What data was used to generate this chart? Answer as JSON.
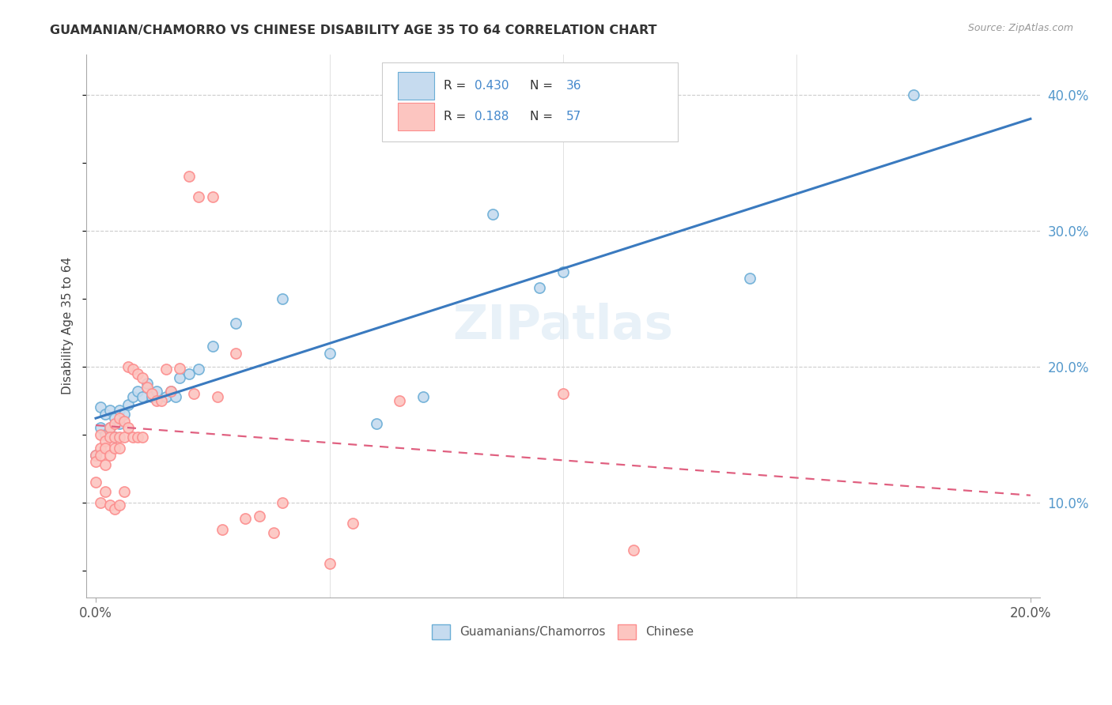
{
  "title": "GUAMANIAN/CHAMORRO VS CHINESE DISABILITY AGE 35 TO 64 CORRELATION CHART",
  "source": "Source: ZipAtlas.com",
  "ylabel": "Disability Age 35 to 64",
  "legend_label1": "Guamanians/Chamorros",
  "legend_label2": "Chinese",
  "r1": "0.430",
  "n1": "36",
  "r2": "0.188",
  "n2": "57",
  "blue_marker_face": "#c6dbef",
  "blue_marker_edge": "#6baed6",
  "pink_marker_face": "#fcc5c0",
  "pink_marker_edge": "#fc8d8d",
  "line_blue": "#3a7abf",
  "line_pink": "#e06080",
  "watermark": "ZIPatlas",
  "xlim": [
    0.0,
    0.2
  ],
  "ylim": [
    0.03,
    0.43
  ],
  "yticks": [
    0.1,
    0.2,
    0.3,
    0.4
  ],
  "ytick_labels": [
    "10.0%",
    "20.0%",
    "30.0%",
    "40.0%"
  ],
  "guam_x": [
    0.0,
    0.001,
    0.001,
    0.002,
    0.002,
    0.003,
    0.003,
    0.004,
    0.004,
    0.005,
    0.005,
    0.006,
    0.007,
    0.008,
    0.009,
    0.01,
    0.011,
    0.012,
    0.013,
    0.015,
    0.016,
    0.017,
    0.018,
    0.02,
    0.022,
    0.025,
    0.03,
    0.04,
    0.05,
    0.06,
    0.07,
    0.085,
    0.095,
    0.1,
    0.14,
    0.175
  ],
  "guam_y": [
    0.135,
    0.155,
    0.17,
    0.15,
    0.165,
    0.155,
    0.168,
    0.148,
    0.162,
    0.158,
    0.168,
    0.165,
    0.172,
    0.178,
    0.182,
    0.178,
    0.188,
    0.178,
    0.182,
    0.178,
    0.182,
    0.178,
    0.192,
    0.195,
    0.198,
    0.215,
    0.232,
    0.25,
    0.21,
    0.158,
    0.178,
    0.312,
    0.258,
    0.27,
    0.265,
    0.4
  ],
  "chinese_x": [
    0.0,
    0.0,
    0.0,
    0.001,
    0.001,
    0.001,
    0.001,
    0.002,
    0.002,
    0.002,
    0.002,
    0.003,
    0.003,
    0.003,
    0.003,
    0.004,
    0.004,
    0.004,
    0.004,
    0.005,
    0.005,
    0.005,
    0.005,
    0.006,
    0.006,
    0.006,
    0.007,
    0.007,
    0.008,
    0.008,
    0.009,
    0.009,
    0.01,
    0.01,
    0.011,
    0.012,
    0.013,
    0.014,
    0.015,
    0.016,
    0.018,
    0.02,
    0.021,
    0.022,
    0.025,
    0.026,
    0.027,
    0.03,
    0.032,
    0.035,
    0.038,
    0.04,
    0.05,
    0.055,
    0.065,
    0.1,
    0.115
  ],
  "chinese_y": [
    0.135,
    0.13,
    0.115,
    0.15,
    0.14,
    0.135,
    0.1,
    0.145,
    0.14,
    0.128,
    0.108,
    0.155,
    0.148,
    0.135,
    0.098,
    0.158,
    0.148,
    0.14,
    0.095,
    0.162,
    0.148,
    0.14,
    0.098,
    0.16,
    0.148,
    0.108,
    0.2,
    0.155,
    0.198,
    0.148,
    0.195,
    0.148,
    0.192,
    0.148,
    0.185,
    0.18,
    0.175,
    0.175,
    0.198,
    0.182,
    0.199,
    0.34,
    0.18,
    0.325,
    0.325,
    0.178,
    0.08,
    0.21,
    0.088,
    0.09,
    0.078,
    0.1,
    0.055,
    0.085,
    0.175,
    0.18,
    0.065
  ]
}
